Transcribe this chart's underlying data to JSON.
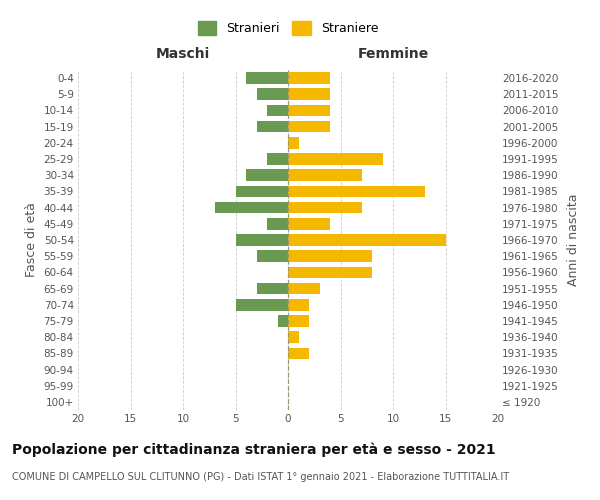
{
  "age_groups": [
    "100+",
    "95-99",
    "90-94",
    "85-89",
    "80-84",
    "75-79",
    "70-74",
    "65-69",
    "60-64",
    "55-59",
    "50-54",
    "45-49",
    "40-44",
    "35-39",
    "30-34",
    "25-29",
    "20-24",
    "15-19",
    "10-14",
    "5-9",
    "0-4"
  ],
  "birth_years": [
    "≤ 1920",
    "1921-1925",
    "1926-1930",
    "1931-1935",
    "1936-1940",
    "1941-1945",
    "1946-1950",
    "1951-1955",
    "1956-1960",
    "1961-1965",
    "1966-1970",
    "1971-1975",
    "1976-1980",
    "1981-1985",
    "1986-1990",
    "1991-1995",
    "1996-2000",
    "2001-2005",
    "2006-2010",
    "2011-2015",
    "2016-2020"
  ],
  "males": [
    0,
    0,
    0,
    0,
    0,
    1,
    5,
    3,
    0,
    3,
    5,
    2,
    7,
    5,
    4,
    2,
    0,
    3,
    2,
    3,
    4
  ],
  "females": [
    0,
    0,
    0,
    2,
    1,
    2,
    2,
    3,
    8,
    8,
    15,
    4,
    7,
    13,
    7,
    9,
    1,
    4,
    4,
    4,
    4
  ],
  "male_color": "#6a9a52",
  "female_color": "#f5b800",
  "xlim": 20,
  "title": "Popolazione per cittadinanza straniera per età e sesso - 2021",
  "subtitle": "COMUNE DI CAMPELLO SUL CLITUNNO (PG) - Dati ISTAT 1° gennaio 2021 - Elaborazione TUTTITALIA.IT",
  "ylabel_left": "Fasce di età",
  "ylabel_right": "Anni di nascita",
  "xlabel_left": "Maschi",
  "xlabel_right": "Femmine",
  "legend_male": "Stranieri",
  "legend_female": "Straniere",
  "background_color": "#ffffff",
  "grid_color": "#cccccc",
  "title_fontsize": 10,
  "subtitle_fontsize": 7,
  "axis_label_fontsize": 9,
  "tick_fontsize": 7.5
}
